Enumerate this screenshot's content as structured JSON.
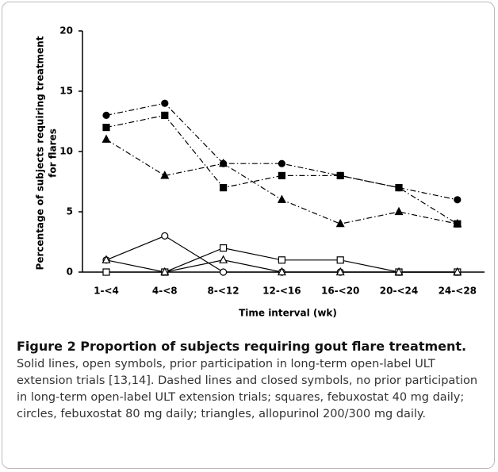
{
  "chart_data": {
    "type": "line",
    "ylabel": [
      "Percentage of subjects requiring treatment",
      "for flares"
    ],
    "xlabel": "Time interval (wk)",
    "categories": [
      "1-<4",
      "4-<8",
      "8-<12",
      "12-<16",
      "16-<20",
      "20-<24",
      "24-<28"
    ],
    "ylim": [
      0,
      20
    ],
    "yticks": [
      0,
      5,
      10,
      15,
      20
    ],
    "series": [
      {
        "color": "#000000",
        "marker": "circle",
        "filled": true,
        "dash": "dashdot",
        "values": [
          13,
          14,
          9,
          9,
          8,
          7,
          6
        ]
      },
      {
        "color": "#000000",
        "marker": "square",
        "filled": true,
        "dash": "dashdot",
        "values": [
          12,
          13,
          7,
          8,
          8,
          7,
          4
        ]
      },
      {
        "color": "#000000",
        "marker": "triangle",
        "filled": true,
        "dash": "dashdot",
        "values": [
          11,
          8,
          9,
          6,
          4,
          5,
          4
        ]
      },
      {
        "color": "#000000",
        "marker": "circle",
        "filled": false,
        "dash": "solid",
        "values": [
          1,
          3,
          0,
          0,
          0,
          0,
          0
        ]
      },
      {
        "color": "#000000",
        "marker": "square",
        "filled": false,
        "dash": "solid",
        "values": [
          0,
          0,
          2,
          1,
          1,
          0,
          0
        ]
      },
      {
        "color": "#000000",
        "marker": "triangle",
        "filled": false,
        "dash": "solid",
        "values": [
          1,
          0,
          1,
          0,
          0,
          0,
          0
        ]
      }
    ]
  },
  "caption": {
    "title": "Figure 2 Proportion of subjects requiring gout flare treatment.",
    "text": "Solid lines, open symbols, prior participation in long-term open-label ULT extension trials [13,14]. Dashed lines and closed symbols, no prior participation in long-term open-label ULT extension trials; squares, febuxostat 40 mg daily; circles, febuxostat 80 mg daily; triangles, allopurinol 200/300 mg daily."
  }
}
